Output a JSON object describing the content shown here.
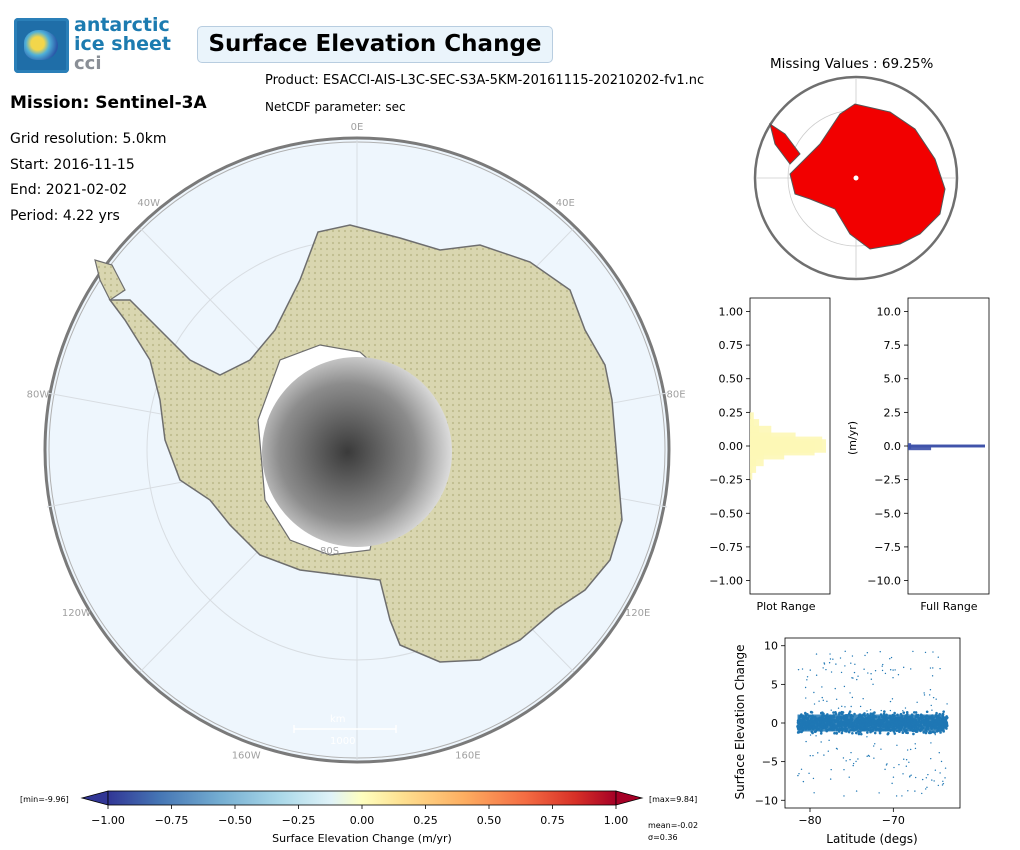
{
  "logo": {
    "line1": "antarctic",
    "line2": "ice sheet",
    "line3": "cci"
  },
  "title": "Surface Elevation Change",
  "mission": "Mission: Sentinel-3A",
  "meta": {
    "grid": "Grid resolution: 5.0km",
    "start": "Start: 2016-11-15",
    "end": "End: 2021-02-02",
    "period": "Period: 4.22 yrs"
  },
  "product": "Product: ESACCI-AIS-L3C-SEC-S3A-5KM-20161115-20210202-fv1.nc",
  "netcdf": "NetCDF parameter: sec",
  "missing": "Missing Values : 69.25%",
  "map": {
    "lon_labels": [
      "0E",
      "40E",
      "80E",
      "120E",
      "160E",
      "160W",
      "120W",
      "80W",
      "40W"
    ],
    "lat_label": "80S",
    "scale_unit": "km",
    "scale_value": "1000",
    "colors": {
      "ocean": "#eef6fd",
      "coast": "#6e6e6e",
      "ice_tint": "#d6d2a4"
    }
  },
  "colorbar": {
    "ticks": [
      "-1.00",
      "-0.75",
      "-0.50",
      "-0.25",
      "0.00",
      "0.25",
      "0.50",
      "0.75",
      "1.00"
    ],
    "label": "Surface Elevation Change (m/yr)",
    "min_label": "[min=-9.96]",
    "max_label": "[max=9.84]",
    "mean_label": "mean=-0.02",
    "sigma_label": "σ=0.36"
  },
  "chart_data": [
    {
      "type": "bar",
      "name": "plot-range-histogram",
      "xlabel": "Plot Range",
      "ylabel": "",
      "ylim": [
        -1.1,
        1.1
      ],
      "ticks": [
        "1.00",
        "0.75",
        "0.50",
        "0.25",
        "0.00",
        "-0.25",
        "-0.50",
        "-0.75",
        "-1.00"
      ],
      "bins": [
        {
          "y": 0.2,
          "count": 0.05
        },
        {
          "y": 0.15,
          "count": 0.12
        },
        {
          "y": 0.1,
          "count": 0.28
        },
        {
          "y": 0.05,
          "count": 0.6
        },
        {
          "y": 0.02,
          "count": 0.95
        },
        {
          "y": 0.0,
          "count": 1.0
        },
        {
          "y": -0.02,
          "count": 0.85
        },
        {
          "y": -0.05,
          "count": 0.45
        },
        {
          "y": -0.1,
          "count": 0.18
        },
        {
          "y": -0.15,
          "count": 0.08
        },
        {
          "y": -0.2,
          "count": 0.03
        }
      ]
    },
    {
      "type": "bar",
      "name": "full-range-histogram",
      "xlabel": "Full Range",
      "ylabel": "(m/yr)",
      "ylim": [
        -11,
        11
      ],
      "ticks": [
        "10.0",
        "7.5",
        "5.0",
        "2.5",
        "0.0",
        "-2.5",
        "-5.0",
        "-7.5",
        "-10.0"
      ],
      "bins": [
        {
          "y": 0.0,
          "count": 1.0
        },
        {
          "y": 0.1,
          "count": 0.04
        },
        {
          "y": -0.1,
          "count": 0.04
        },
        {
          "y": -0.2,
          "count": 0.3
        }
      ]
    },
    {
      "type": "scatter",
      "name": "latitude-scatter",
      "xlabel": "Latitude (degs)",
      "ylabel": "Surface Elevation Change",
      "xlim": [
        -83,
        -62
      ],
      "ylim": [
        -11,
        11
      ],
      "xticks": [
        "-80",
        "-70"
      ],
      "yticks": [
        "10",
        "5",
        "0",
        "-5",
        "-10"
      ],
      "color": "#1f77b4",
      "summary": {
        "mean": -0.02,
        "sigma": 0.36,
        "x_range": [
          -81.5,
          -63.5
        ],
        "y_range": [
          -9.96,
          9.84
        ]
      }
    }
  ]
}
